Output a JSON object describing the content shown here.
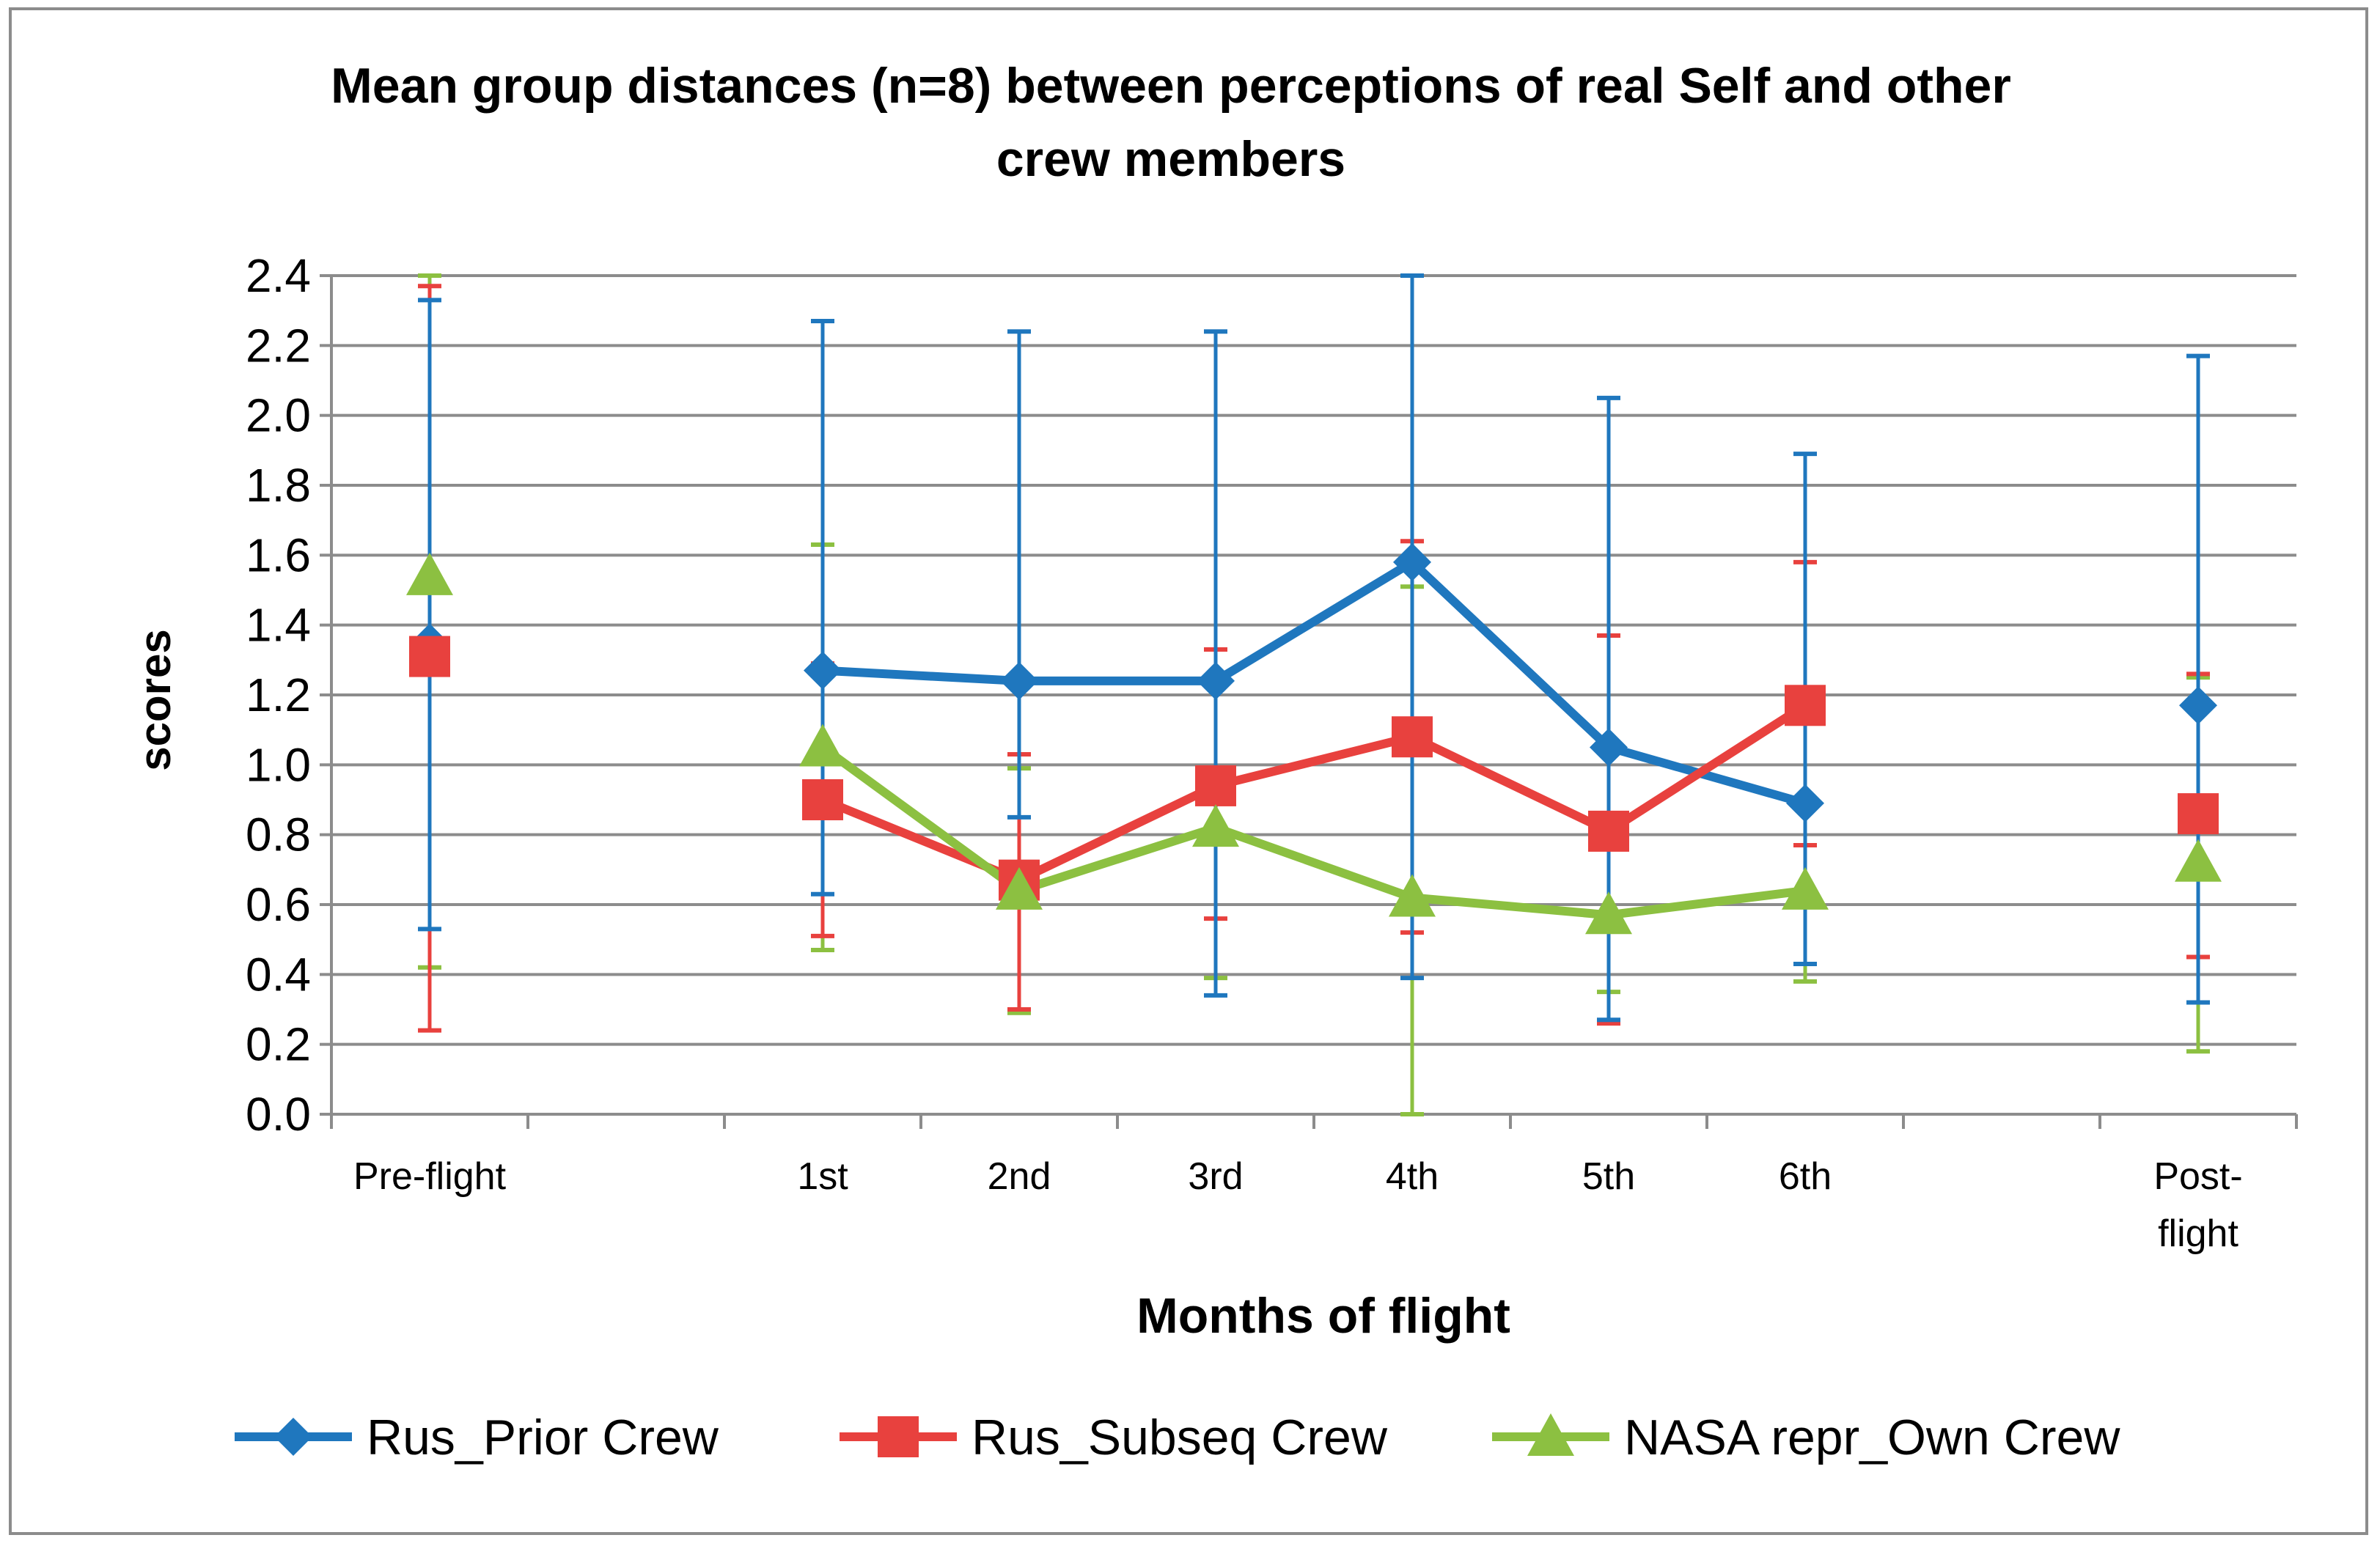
{
  "chart_data": {
    "type": "line",
    "title_lines": [
      "Mean group distances (n=8) between perceptions  of real Self and other",
      "crew members"
    ],
    "xlabel": "Months of flight",
    "ylabel": "scores",
    "categories": [
      "Pre-flight",
      "",
      "1st",
      "2nd",
      "3rd",
      "4th",
      "5th",
      "6th",
      "",
      "Post-flight"
    ],
    "category_label_lines": [
      [
        "Pre-flight"
      ],
      [],
      [
        "1st"
      ],
      [
        "2nd"
      ],
      [
        "3rd"
      ],
      [
        "4th"
      ],
      [
        "5th"
      ],
      [
        "6th"
      ],
      [],
      [
        "Post-",
        "flight"
      ]
    ],
    "ylim": [
      0,
      2.4
    ],
    "yticks": [
      0.0,
      0.2,
      0.4,
      0.6,
      0.8,
      1.0,
      1.2,
      1.4,
      1.6,
      1.8,
      2.0,
      2.2,
      2.4
    ],
    "ytick_labels": [
      "0.0",
      "0.2",
      "0.4",
      "0.6",
      "0.8",
      "1.0",
      "1.2",
      "1.4",
      "1.6",
      "1.8",
      "2.0",
      "2.2",
      "2.4"
    ],
    "grid": true,
    "legend_position": "bottom",
    "series": [
      {
        "name": "Rus_Prior Crew",
        "color": "#1f77be",
        "marker": "diamond",
        "values": [
          1.35,
          null,
          1.27,
          1.24,
          1.24,
          1.58,
          1.05,
          0.89,
          null,
          1.17
        ],
        "error_low": [
          0.53,
          null,
          0.63,
          0.85,
          0.34,
          0.39,
          0.27,
          0.43,
          null,
          0.32
        ],
        "error_high": [
          2.33,
          null,
          2.27,
          2.24,
          2.24,
          2.4,
          2.05,
          1.89,
          null,
          2.17
        ]
      },
      {
        "name": "Rus_Subseq Crew",
        "color": "#e8413e",
        "marker": "square",
        "values": [
          1.31,
          null,
          0.9,
          0.67,
          0.94,
          1.08,
          0.81,
          1.17,
          null,
          0.86
        ],
        "error_low": [
          0.24,
          null,
          0.51,
          0.3,
          0.56,
          0.52,
          0.26,
          0.77,
          null,
          0.45
        ],
        "error_high": [
          2.37,
          null,
          1.29,
          1.03,
          1.33,
          1.64,
          1.37,
          1.58,
          null,
          1.26
        ]
      },
      {
        "name": "NASA repr_Own Crew",
        "color": "#8cc041",
        "marker": "triangle",
        "values": [
          1.54,
          null,
          1.05,
          0.64,
          0.82,
          0.62,
          0.57,
          0.64,
          null,
          0.72
        ],
        "error_low": [
          0.42,
          null,
          0.47,
          0.29,
          0.39,
          0.0,
          0.35,
          0.38,
          null,
          0.18
        ],
        "error_high": [
          2.4,
          null,
          1.63,
          0.99,
          1.25,
          1.51,
          0.8,
          0.9,
          null,
          1.25
        ]
      }
    ]
  }
}
